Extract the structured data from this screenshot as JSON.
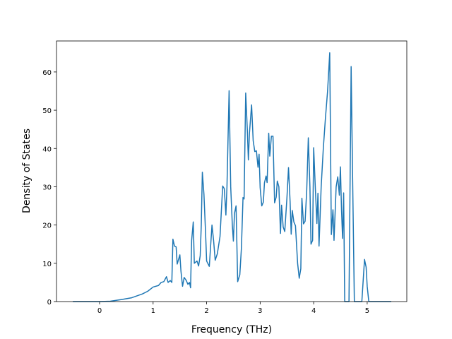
{
  "chart_data": {
    "type": "line",
    "xlabel": "Frequency (THz)",
    "ylabel": "Density of States",
    "color": "#1f77b4",
    "xlim": [
      -0.805,
      5.74
    ],
    "xticks": [
      0,
      1,
      2,
      3,
      4,
      5
    ],
    "ylim": [
      0,
      68.1
    ],
    "yticks": [
      0,
      10,
      20,
      30,
      40,
      50,
      60
    ],
    "x": [
      -0.5,
      0,
      0.2,
      0.4,
      0.6,
      0.8,
      0.9,
      1.0,
      1.1,
      1.15,
      1.2,
      1.25,
      1.28,
      1.32,
      1.35,
      1.37,
      1.4,
      1.43,
      1.45,
      1.5,
      1.52,
      1.55,
      1.58,
      1.62,
      1.65,
      1.68,
      1.7,
      1.72,
      1.75,
      1.77,
      1.82,
      1.85,
      1.88,
      1.9,
      1.92,
      1.95,
      1.98,
      2.0,
      2.05,
      2.1,
      2.13,
      2.16,
      2.2,
      2.25,
      2.3,
      2.33,
      2.36,
      2.38,
      2.42,
      2.45,
      2.48,
      2.5,
      2.52,
      2.55,
      2.58,
      2.62,
      2.65,
      2.68,
      2.7,
      2.73,
      2.76,
      2.78,
      2.8,
      2.84,
      2.87,
      2.9,
      2.93,
      2.96,
      2.98,
      3.0,
      3.03,
      3.06,
      3.08,
      3.11,
      3.13,
      3.16,
      3.18,
      3.21,
      3.24,
      3.27,
      3.3,
      3.32,
      3.35,
      3.38,
      3.4,
      3.43,
      3.46,
      3.5,
      3.53,
      3.56,
      3.58,
      3.6,
      3.63,
      3.66,
      3.7,
      3.73,
      3.76,
      3.78,
      3.81,
      3.84,
      3.87,
      3.9,
      3.93,
      3.95,
      3.98,
      4.0,
      4.03,
      4.06,
      4.08,
      4.1,
      4.14,
      4.18,
      4.22,
      4.26,
      4.3,
      4.33,
      4.36,
      4.38,
      4.42,
      4.45,
      4.48,
      4.5,
      4.52,
      4.54,
      4.56,
      4.58,
      4.62,
      4.66,
      4.7,
      4.72,
      4.76,
      4.9,
      4.95,
      4.98,
      5.0,
      5.03,
      5.45
    ],
    "values": [
      0,
      0,
      0.1,
      0.5,
      1.0,
      2.0,
      2.7,
      3.8,
      4.2,
      5.0,
      5.2,
      6.5,
      5.0,
      5.5,
      5.0,
      16.3,
      14.5,
      14.3,
      9.8,
      12.2,
      8,
      4,
      6.3,
      5.5,
      4.5,
      5,
      3.6,
      16,
      20.8,
      10,
      10.6,
      9.3,
      12,
      20,
      33.8,
      28,
      18,
      10.6,
      9.2,
      20,
      16,
      10.8,
      12.5,
      17,
      30.2,
      29.5,
      22.6,
      30,
      55.1,
      30,
      20,
      15.8,
      23,
      25,
      5.2,
      7,
      14,
      27.2,
      26.8,
      54.5,
      45,
      37,
      44,
      51.4,
      42,
      39.2,
      39.4,
      35.1,
      38.5,
      29.8,
      25,
      26,
      31,
      32.8,
      31.1,
      44,
      38,
      43.2,
      43.2,
      25.8,
      27.3,
      31.5,
      30,
      17.8,
      25.2,
      19.5,
      18.3,
      27,
      35,
      26,
      17.6,
      23.8,
      20.8,
      19.8,
      10,
      6.1,
      8.6,
      27,
      20.3,
      21,
      29,
      42.8,
      30,
      15,
      16,
      40.2,
      30,
      20.4,
      28.3,
      14.5,
      30,
      40,
      48,
      55,
      65,
      17.5,
      24,
      16,
      30,
      32.6,
      27.8,
      35.2,
      24,
      16.5,
      28.4,
      0,
      0,
      0,
      61.4,
      40,
      0,
      0,
      11,
      9,
      4,
      0,
      0
    ]
  }
}
